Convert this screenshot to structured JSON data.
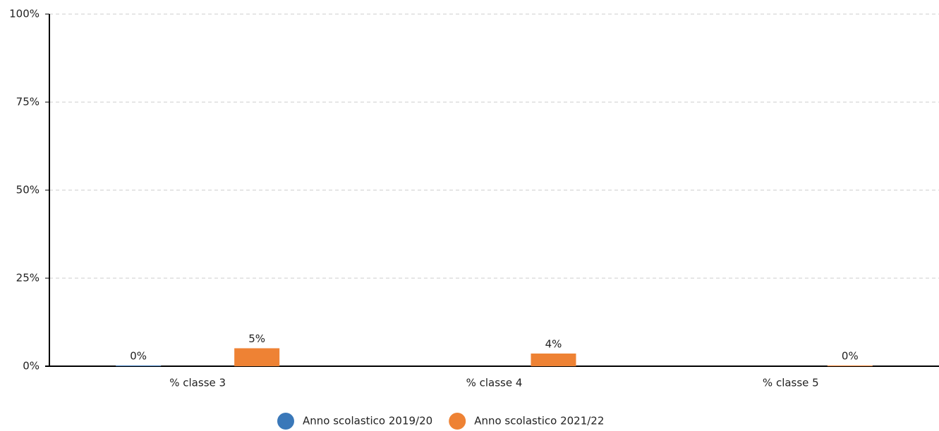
{
  "chart_data": {
    "type": "bar",
    "categories": [
      "% classe 3",
      "% classe 4",
      "% classe 5"
    ],
    "series": [
      {
        "name": "Anno scolastico 2019/20",
        "color": "#3a78b9",
        "values": [
          0.2,
          null,
          null
        ],
        "value_labels": [
          "0%",
          null,
          null
        ]
      },
      {
        "name": "Anno scolastico 2021/22",
        "color": "#ee8234",
        "values": [
          5.1,
          3.6,
          0.2
        ],
        "value_labels": [
          "5%",
          "4%",
          "0%"
        ]
      }
    ],
    "ylim": [
      0,
      100
    ],
    "yticks": [
      {
        "value": 0,
        "label": "0%"
      },
      {
        "value": 25,
        "label": "25%"
      },
      {
        "value": 50,
        "label": "50%"
      },
      {
        "value": 75,
        "label": "75%"
      },
      {
        "value": 100,
        "label": "100%"
      }
    ],
    "grid": true,
    "legend": "bottom"
  }
}
